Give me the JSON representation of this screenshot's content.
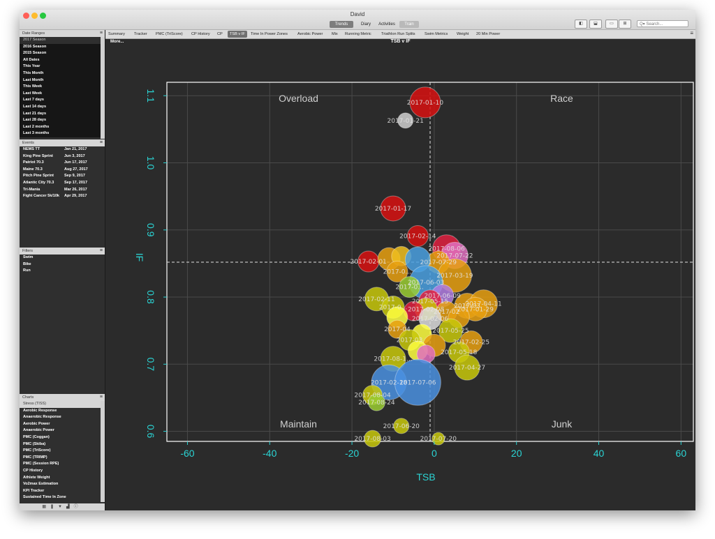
{
  "window": {
    "title": "David"
  },
  "views": [
    {
      "label": "Trends",
      "state": "active"
    },
    {
      "label": "Diary",
      "state": "normal"
    },
    {
      "label": "Activities",
      "state": "normal"
    },
    {
      "label": "Train",
      "state": "dim"
    }
  ],
  "search": {
    "placeholder": "Q▾ Search..."
  },
  "date_ranges": {
    "header": "Date Ranges",
    "items": [
      {
        "label": "2017 Season",
        "kind": "group"
      },
      {
        "label": "2016 Season",
        "kind": "sel"
      },
      {
        "label": "2015 Season",
        "kind": "sel"
      },
      {
        "label": "All Dates",
        "kind": "sel"
      },
      {
        "label": "This Year",
        "kind": "sel"
      },
      {
        "label": "This Month",
        "kind": "sel"
      },
      {
        "label": "Last Month",
        "kind": "sel"
      },
      {
        "label": "This Week",
        "kind": "sel"
      },
      {
        "label": "Last Week",
        "kind": "sel"
      },
      {
        "label": "Last 7 days",
        "kind": "sel"
      },
      {
        "label": "Last 14 days",
        "kind": "sel"
      },
      {
        "label": "Last 21 days",
        "kind": "sel"
      },
      {
        "label": "Last 28 days",
        "kind": "sel"
      },
      {
        "label": "Last 2 months",
        "kind": "sel"
      },
      {
        "label": "Last 3 months",
        "kind": "sel"
      }
    ]
  },
  "events": {
    "header": "Events",
    "items": [
      {
        "name": "NEMS TT",
        "date": "Jan 21, 2017"
      },
      {
        "name": "King Pine Sprint",
        "date": "Jun 3, 2017"
      },
      {
        "name": "Patriot 70.3",
        "date": "Jun 17, 2017"
      },
      {
        "name": "Maine 70.3",
        "date": "Aug 27, 2017"
      },
      {
        "name": "Pitch Pine Sprint",
        "date": "Sep 9, 2017"
      },
      {
        "name": "Atlantic City 70.3",
        "date": "Sep 17, 2017"
      },
      {
        "name": "Tri-Mania",
        "date": "Mar 26, 2017"
      },
      {
        "name": "Fight Cancer 5k/10k",
        "date": "Apr 29, 2017"
      }
    ]
  },
  "filters": {
    "header": "Filters",
    "items": [
      "Swim",
      "Bike",
      "Run"
    ]
  },
  "charts_panel": {
    "header": "Charts",
    "group": "Stress (TISS)",
    "items": [
      "Aerobic Response",
      "Anaerobic Response",
      "Aerobic Power",
      "Anaerobic Power",
      "PMC (Coggan)",
      "PMC (Skiba)",
      "PMC (TriScore)",
      "PMC (TRIMP)",
      "PMC (Session RPE)",
      "CP History",
      "Athlete Weight",
      "Vo2max Estimation",
      "KPI Tracker",
      "Sustained Time In Zone"
    ]
  },
  "bottom_icons": [
    "calendar-icon",
    "bookmark-icon",
    "filter-icon",
    "chart-icon",
    "info-icon"
  ],
  "tabs": [
    {
      "label": "Summary",
      "active": false
    },
    {
      "label": "Tracker",
      "active": false
    },
    {
      "label": "PMC (TriScore)",
      "active": false
    },
    {
      "label": "CP History",
      "active": false
    },
    {
      "label": "CP",
      "active": false
    },
    {
      "label": "TSB v IF",
      "active": true
    },
    {
      "label": "Time In Power Zones",
      "active": false
    },
    {
      "label": "Aerobic Power",
      "active": false
    },
    {
      "label": "Mix",
      "active": false
    },
    {
      "label": "Running Metric",
      "active": false
    },
    {
      "label": "Triathlon Run Splits",
      "active": false
    },
    {
      "label": "Swim Metrics",
      "active": false
    },
    {
      "label": "Weight",
      "active": false
    },
    {
      "label": "20 Min Power",
      "active": false
    }
  ],
  "more_label": "More...",
  "chart_data": {
    "type": "scatter",
    "title": "TSB v IF",
    "xlabel": "TSB",
    "ylabel": "IF",
    "xlim": [
      -65,
      63
    ],
    "ylim": [
      0.585,
      1.12
    ],
    "xticks": [
      -60,
      -40,
      -20,
      0,
      20,
      40,
      60
    ],
    "yticks": [
      0.6,
      0.7,
      0.8,
      0.9,
      1.0,
      1.1
    ],
    "xtick_labels": [
      "-60",
      "-40",
      "-20",
      "0",
      "20",
      "40",
      "60"
    ],
    "ytick_labels": [
      "0.6",
      "0.7",
      "0.8",
      "0.9",
      "1.0",
      "1.1"
    ],
    "grid": true,
    "crosshair": {
      "x": -1,
      "y": 0.852
    },
    "quadrants": {
      "top_left": "Overload",
      "top_right": "Race",
      "bottom_left": "Maintain",
      "bottom_right": "Junk"
    },
    "points": [
      {
        "x": -2.2,
        "y": 1.09,
        "r": 22,
        "color": "#d81010",
        "label": "2017-01-10"
      },
      {
        "x": -7,
        "y": 1.063,
        "r": 11,
        "color": "#cfcfcf",
        "label": "2017-01-21"
      },
      {
        "x": -10,
        "y": 0.932,
        "r": 18,
        "color": "#d81010",
        "label": "2017-01-17"
      },
      {
        "x": -4,
        "y": 0.891,
        "r": 15,
        "color": "#d81010",
        "label": "2017-02-14"
      },
      {
        "x": 3,
        "y": 0.872,
        "r": 20,
        "color": "#e02040",
        "label": "2017-08-06"
      },
      {
        "x": 5,
        "y": 0.862,
        "r": 19,
        "color": "#e070c0",
        "label": "2017-07-22"
      },
      {
        "x": 1,
        "y": 0.852,
        "r": 16,
        "color": "#e8a010",
        "label": "2017-07-29"
      },
      {
        "x": -16,
        "y": 0.853,
        "r": 15,
        "color": "#d81010",
        "label": "2017-02-01"
      },
      {
        "x": -11,
        "y": 0.857,
        "r": 16,
        "color": "#e8a010",
        "label": ""
      },
      {
        "x": -8,
        "y": 0.861,
        "r": 14,
        "color": "#f0c020",
        "label": ""
      },
      {
        "x": -4,
        "y": 0.856,
        "r": 18,
        "color": "#4aa0e0",
        "label": ""
      },
      {
        "x": -9,
        "y": 0.838,
        "r": 15,
        "color": "#e8a010",
        "label": "2017-0..."
      },
      {
        "x": 5,
        "y": 0.832,
        "r": 24,
        "color": "#e8a010",
        "label": "2017-03-19"
      },
      {
        "x": -2,
        "y": 0.822,
        "r": 24,
        "color": "#4aa0e0",
        "label": "2017-06-03"
      },
      {
        "x": -6,
        "y": 0.815,
        "r": 15,
        "color": "#9acd32",
        "label": "2017-0..."
      },
      {
        "x": 2,
        "y": 0.802,
        "r": 16,
        "color": "#b07de0",
        "label": "2017-06-09"
      },
      {
        "x": -14,
        "y": 0.797,
        "r": 17,
        "color": "#c8c80a",
        "label": "2017-02-11"
      },
      {
        "x": -1,
        "y": 0.794,
        "r": 16,
        "color": "#e02040",
        "label": "2017-05-15"
      },
      {
        "x": 8,
        "y": 0.787,
        "r": 18,
        "color": "#e8a010",
        "label": "2017-03"
      },
      {
        "x": 12,
        "y": 0.79,
        "r": 20,
        "color": "#e8a010",
        "label": "2017-04-11"
      },
      {
        "x": 10,
        "y": 0.782,
        "r": 17,
        "color": "#e8a010",
        "label": "2017-01-29"
      },
      {
        "x": -10,
        "y": 0.785,
        "r": 16,
        "color": "#c8c80a",
        "label": "2017-0..."
      },
      {
        "x": -2,
        "y": 0.782,
        "r": 16,
        "color": "#c8c80a",
        "label": "2017-02-08"
      },
      {
        "x": -5,
        "y": 0.779,
        "r": 14,
        "color": "#e02040",
        "label": ""
      },
      {
        "x": 3,
        "y": 0.778,
        "r": 15,
        "color": "#e8a010",
        "label": "2017-02"
      },
      {
        "x": -1,
        "y": 0.768,
        "r": 16,
        "color": "#dcdcdc",
        "label": "2017-02-06"
      },
      {
        "x": -9,
        "y": 0.77,
        "r": 15,
        "color": "#ffff40",
        "label": ""
      },
      {
        "x": 6,
        "y": 0.77,
        "r": 15,
        "color": "#e8a010",
        "label": ""
      },
      {
        "x": -9,
        "y": 0.752,
        "r": 13,
        "color": "#e8a010",
        "label": "2017-04"
      },
      {
        "x": 4,
        "y": 0.75,
        "r": 17,
        "color": "#c8c80a",
        "label": "2017-05-25"
      },
      {
        "x": -3,
        "y": 0.745,
        "r": 14,
        "color": "#ffff40",
        "label": ""
      },
      {
        "x": -6,
        "y": 0.736,
        "r": 15,
        "color": "#c8c80a",
        "label": "2017-03"
      },
      {
        "x": 9,
        "y": 0.733,
        "r": 16,
        "color": "#e8a010",
        "label": "2017-02-25"
      },
      {
        "x": 0,
        "y": 0.728,
        "r": 16,
        "color": "#e8a010",
        "label": ""
      },
      {
        "x": -4,
        "y": 0.72,
        "r": 14,
        "color": "#ffff40",
        "label": ""
      },
      {
        "x": 6,
        "y": 0.718,
        "r": 15,
        "color": "#c8c80a",
        "label": "2017-05-18"
      },
      {
        "x": -2,
        "y": 0.715,
        "r": 13,
        "color": "#e070c0",
        "label": ""
      },
      {
        "x": -10,
        "y": 0.708,
        "r": 18,
        "color": "#c8c80a",
        "label": "2017-08-1..."
      },
      {
        "x": 8,
        "y": 0.695,
        "r": 18,
        "color": "#c8c80a",
        "label": "2017-04-27"
      },
      {
        "x": -11,
        "y": 0.673,
        "r": 25,
        "color": "#4a90e0",
        "label": "2017-02-18"
      },
      {
        "x": -4,
        "y": 0.673,
        "r": 33,
        "color": "#4a90e0",
        "label": "2017-07-06"
      },
      {
        "x": -15,
        "y": 0.654,
        "r": 14,
        "color": "#c8c80a",
        "label": "2017-08-04"
      },
      {
        "x": -14,
        "y": 0.643,
        "r": 12,
        "color": "#9acd32",
        "label": "2017-08-24"
      },
      {
        "x": -8,
        "y": 0.608,
        "r": 11,
        "color": "#c8c80a",
        "label": "2017-06-20"
      },
      {
        "x": -15,
        "y": 0.589,
        "r": 12,
        "color": "#c8c80a",
        "label": "2017-08-03"
      },
      {
        "x": 1,
        "y": 0.589,
        "r": 9,
        "color": "#c8c80a",
        "label": "2017-07-20"
      }
    ],
    "colors": {
      "axis": "#2bd4d4",
      "background": "#2b2b2b",
      "frame": "#ffffff",
      "grid": "#4a4a4a",
      "quadrant_text": "#d0d0d0"
    }
  }
}
